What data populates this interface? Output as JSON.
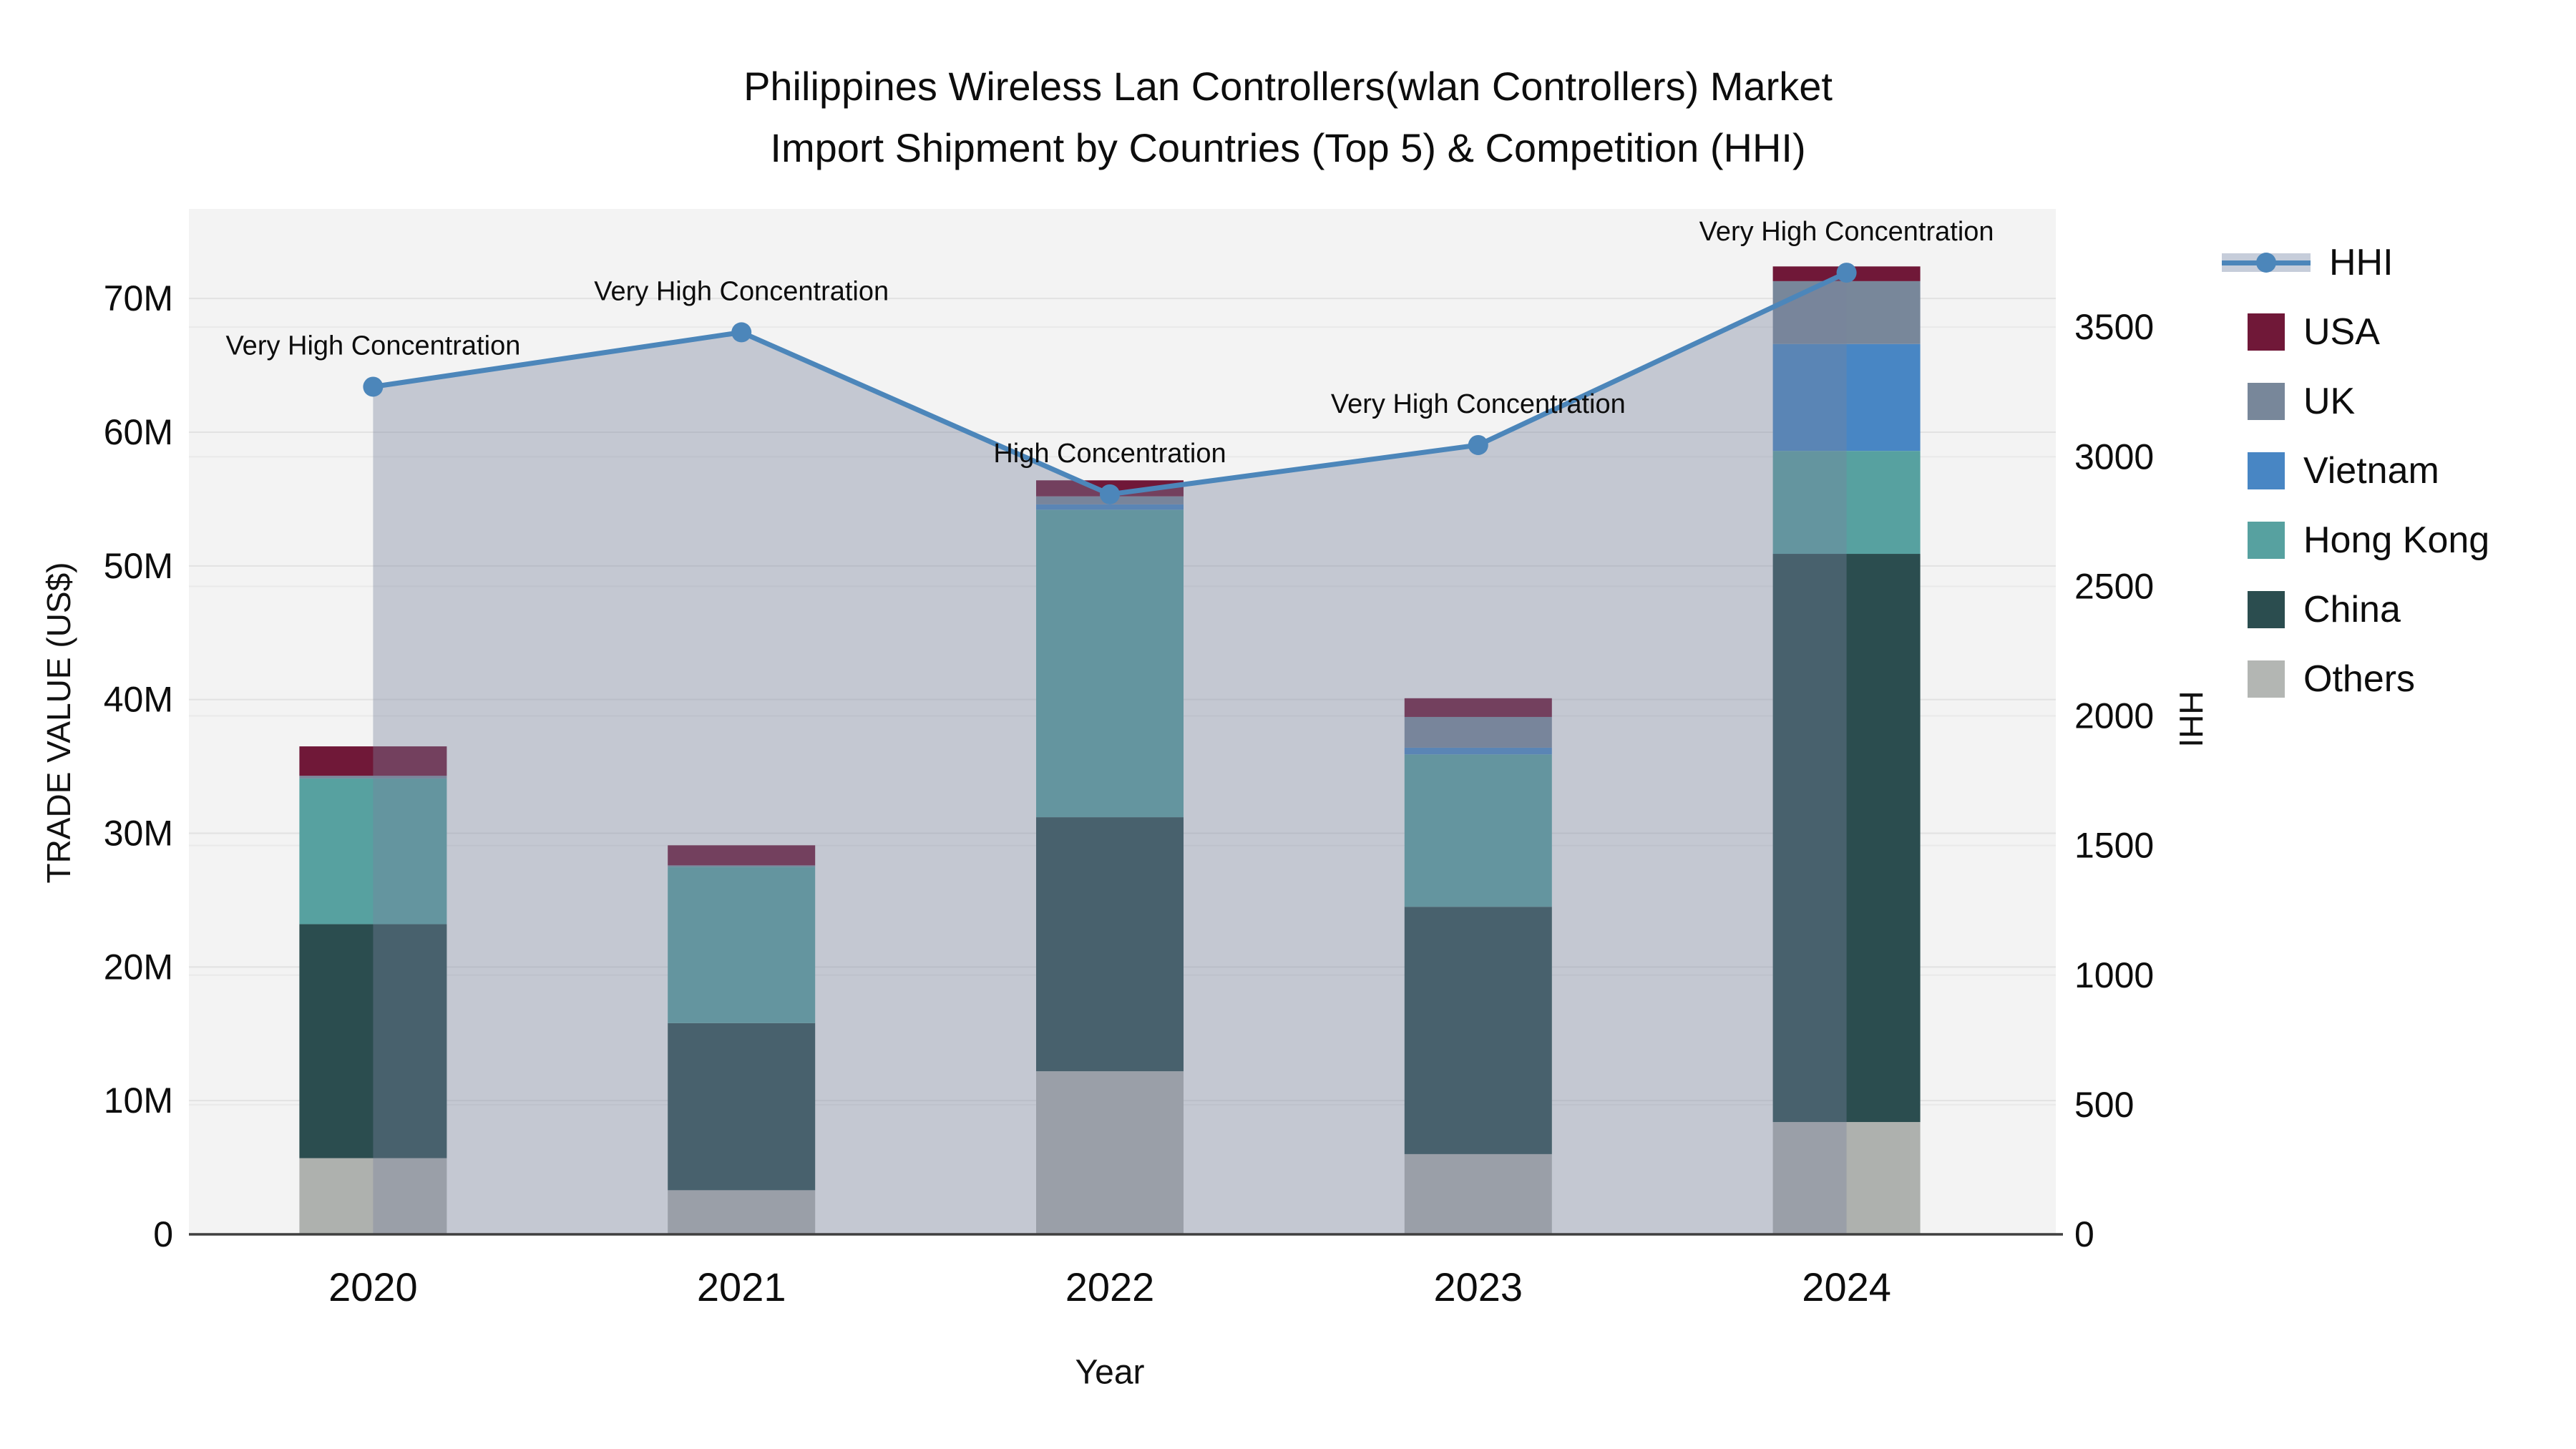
{
  "title": {
    "line1": "Philippines Wireless Lan Controllers(wlan Controllers) Market",
    "line2": "Import Shipment by Countries (Top 5) & Competition (HHI)"
  },
  "chart_data": {
    "type": "combo-stacked-bar-line",
    "categories": [
      "2020",
      "2021",
      "2022",
      "2023",
      "2024"
    ],
    "bar_unit": "million US$",
    "bar_series": [
      {
        "name": "Others",
        "color": "#aeb1ae",
        "values_musd": [
          5.7,
          3.3,
          12.2,
          6.0,
          8.4
        ]
      },
      {
        "name": "China",
        "color": "#2b4d4f",
        "values_musd": [
          17.5,
          12.5,
          19.0,
          18.5,
          42.5
        ]
      },
      {
        "name": "Hong Kong",
        "color": "#57a1a0",
        "values_musd": [
          10.9,
          11.7,
          23.0,
          11.4,
          7.7
        ]
      },
      {
        "name": "Vietnam",
        "color": "#4886c4",
        "values_musd": [
          0,
          0,
          0.4,
          0.5,
          8.0
        ]
      },
      {
        "name": "UK",
        "color": "#78879a",
        "values_musd": [
          0.2,
          0.1,
          0.6,
          2.3,
          4.7
        ]
      },
      {
        "name": "USA",
        "color": "#701838",
        "values_musd": [
          2.2,
          1.5,
          1.2,
          1.4,
          1.1
        ]
      }
    ],
    "line_series": {
      "name": "HHI",
      "color": "#4c86ba",
      "area_fill": "rgba(120,132,158,0.38)",
      "values": [
        3270,
        3480,
        2855,
        3045,
        3710
      ]
    },
    "annotations": [
      "Very High Concentration",
      "Very High Concentration",
      "High Concentration",
      "Very High Concentration",
      "Very High Concentration"
    ],
    "y_left": {
      "title": "TRADE VALUE (US$)",
      "ticks": [
        "0",
        "10M",
        "20M",
        "30M",
        "40M",
        "50M",
        "60M",
        "70M"
      ],
      "tick_values_musd": [
        0,
        10,
        20,
        30,
        40,
        50,
        60,
        70
      ],
      "range_musd": [
        0,
        76.7
      ],
      "grid": true
    },
    "y_right": {
      "title": "HHI",
      "ticks": [
        "0",
        "500",
        "1000",
        "1500",
        "2000",
        "2500",
        "3000",
        "3500"
      ],
      "tick_values": [
        0,
        500,
        1000,
        1500,
        2000,
        2500,
        3000,
        3500
      ],
      "range": [
        0,
        3956
      ],
      "grid": true
    },
    "x": {
      "title": "Year"
    },
    "legend": [
      {
        "name": "HHI",
        "type": "line"
      },
      {
        "name": "USA",
        "type": "bar",
        "color": "#701838"
      },
      {
        "name": "UK",
        "type": "bar",
        "color": "#78879a"
      },
      {
        "name": "Vietnam",
        "type": "bar",
        "color": "#4886c4"
      },
      {
        "name": "Hong Kong",
        "type": "bar",
        "color": "#57a1a0"
      },
      {
        "name": "China",
        "type": "bar",
        "color": "#2b4d4f"
      },
      {
        "name": "Others",
        "type": "bar",
        "color": "#b3b6b3"
      }
    ],
    "legend_position": "right"
  }
}
